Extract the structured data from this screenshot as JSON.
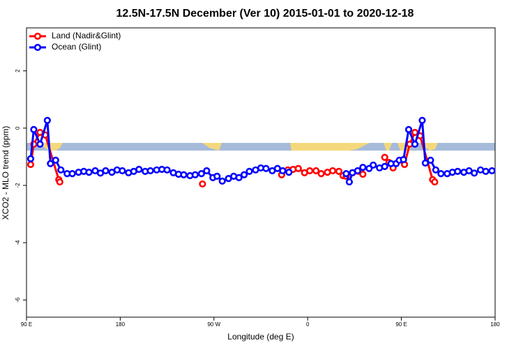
{
  "chart_data": {
    "type": "line",
    "title": "12.5N-17.5N December (Ver 10)   2015-01-01 to 2020-12-18",
    "xlabel": "Longitude (deg E)",
    "ylabel": "XCO2 - MLO trend (ppm)",
    "xlim": [
      90,
      540
    ],
    "ylim": [
      -6.6,
      3.5
    ],
    "xticks": [
      {
        "value": 90,
        "label": "90 E"
      },
      180,
      {
        "value": 270,
        "label": "90 W"
      },
      {
        "value": 360,
        "label": "0"
      },
      {
        "value": 450,
        "label": "90 E"
      },
      {
        "value": 540,
        "label": "180"
      }
    ],
    "yticks": [
      -6,
      -4,
      -2,
      0,
      2
    ],
    "legend": "top-left",
    "series": [
      {
        "name": "Land (Nadir&Glint)",
        "color": "#ff0000",
        "x": [
          94,
          97,
          103,
          108,
          121,
          122,
          null,
          259,
          null,
          335,
          341,
          346,
          351,
          357,
          362,
          368,
          373,
          379,
          384,
          390,
          394,
          397,
          403,
          413,
          null,
          434,
          438,
          442,
          null,
          453,
          458,
          463,
          468,
          480,
          482
        ],
        "values": [
          -1.27,
          -0.56,
          -0.15,
          -0.24,
          -1.8,
          -1.88,
          null,
          -1.95,
          null,
          -1.63,
          -1.46,
          -1.44,
          -1.41,
          -1.56,
          -1.49,
          -1.49,
          -1.59,
          -1.54,
          -1.49,
          -1.51,
          -1.66,
          -1.68,
          -1.56,
          -1.61,
          null,
          -1.02,
          -1.2,
          -1.39,
          null,
          -1.27,
          -0.56,
          -0.15,
          -0.27,
          -1.8,
          -1.88
        ]
      },
      {
        "name": "Ocean (Glint)",
        "color": "#0000ff",
        "x": [
          94,
          97,
          103,
          110,
          113,
          118,
          123,
          129,
          134,
          140,
          145,
          150,
          156,
          161,
          166,
          172,
          177,
          182,
          188,
          193,
          198,
          204,
          209,
          215,
          220,
          225,
          231,
          236,
          241,
          247,
          252,
          258,
          263,
          269,
          273,
          278,
          284,
          289,
          294,
          299,
          304,
          310,
          315,
          320,
          326,
          331,
          336,
          342,
          null,
          397,
          400,
          403,
          408,
          413,
          419,
          423,
          429,
          434,
          440,
          445,
          448,
          452,
          457,
          463,
          470,
          473,
          478,
          483,
          488,
          494,
          499,
          504,
          510,
          515,
          520,
          526,
          531,
          537
        ],
        "values": [
          -1.07,
          -0.05,
          -0.56,
          0.27,
          -1.24,
          -1.12,
          -1.46,
          -1.59,
          -1.59,
          -1.54,
          -1.51,
          -1.54,
          -1.49,
          -1.57,
          -1.49,
          -1.54,
          -1.46,
          -1.49,
          -1.56,
          -1.51,
          -1.44,
          -1.51,
          -1.49,
          -1.46,
          -1.44,
          -1.46,
          -1.56,
          -1.61,
          -1.63,
          -1.66,
          -1.63,
          -1.59,
          -1.49,
          -1.73,
          -1.68,
          -1.85,
          -1.76,
          -1.68,
          -1.73,
          -1.63,
          -1.51,
          -1.46,
          -1.39,
          -1.41,
          -1.49,
          -1.41,
          -1.49,
          -1.54,
          null,
          -1.59,
          -1.88,
          -1.56,
          -1.49,
          -1.37,
          -1.41,
          -1.29,
          -1.39,
          -1.34,
          -1.24,
          -1.24,
          -1.12,
          -1.1,
          -0.05,
          -0.56,
          0.27,
          -1.22,
          -1.12,
          -1.46,
          -1.59,
          -1.59,
          -1.54,
          -1.51,
          -1.54,
          -1.49,
          -1.57,
          -1.46,
          -1.51,
          -1.49
        ]
      }
    ]
  }
}
